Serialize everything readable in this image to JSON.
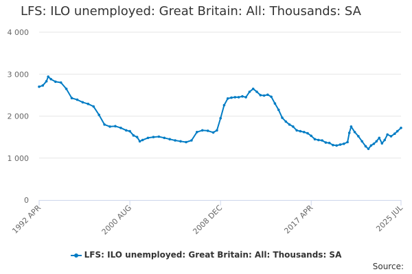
{
  "chart_data": {
    "type": "line",
    "title": "LFS: ILO unemployed: Great Britain: All: Thousands: SA",
    "xlabel": "",
    "ylabel": "",
    "x_tick_labels": [
      "1992 APR",
      "2000 AUG",
      "2008 DEC",
      "2017 APR",
      "2025 JUL"
    ],
    "y_ticks": [
      {
        "value": 0,
        "label": "0"
      },
      {
        "value": 1000,
        "label": "1 000"
      },
      {
        "value": 2000,
        "label": "2 000"
      },
      {
        "value": 3000,
        "label": "3 000"
      },
      {
        "value": 4000,
        "label": "4 000"
      }
    ],
    "ylim": [
      0,
      4000
    ],
    "xlim": [
      "1992 APR",
      "2025 JUL"
    ],
    "grid": "horizontal",
    "legend_position": "bottom",
    "series": [
      {
        "name": "LFS: ILO unemployed: Great Britain: All: Thousands: SA",
        "color": "#007cc4",
        "points": [
          [
            "1992 APR",
            2700
          ],
          [
            "1992 AUG",
            2730
          ],
          [
            "1992 DEC",
            2830
          ],
          [
            "1993 FEB",
            2940
          ],
          [
            "1993 MAY",
            2880
          ],
          [
            "1993 OCT",
            2820
          ],
          [
            "1994 APR",
            2800
          ],
          [
            "1994 OCT",
            2650
          ],
          [
            "1995 APR",
            2430
          ],
          [
            "1995 OCT",
            2390
          ],
          [
            "1996 APR",
            2330
          ],
          [
            "1996 OCT",
            2290
          ],
          [
            "1997 APR",
            2230
          ],
          [
            "1997 OCT",
            2030
          ],
          [
            "1998 APR",
            1800
          ],
          [
            "1998 OCT",
            1750
          ],
          [
            "1999 APR",
            1760
          ],
          [
            "1999 OCT",
            1720
          ],
          [
            "2000 APR",
            1660
          ],
          [
            "2000 AUG",
            1640
          ],
          [
            "2000 DEC",
            1540
          ],
          [
            "2001 APR",
            1500
          ],
          [
            "2001 JUL",
            1400
          ],
          [
            "2001 OCT",
            1430
          ],
          [
            "2002 APR",
            1480
          ],
          [
            "2002 OCT",
            1500
          ],
          [
            "2003 APR",
            1510
          ],
          [
            "2003 OCT",
            1480
          ],
          [
            "2004 APR",
            1450
          ],
          [
            "2004 OCT",
            1420
          ],
          [
            "2005 APR",
            1400
          ],
          [
            "2005 OCT",
            1380
          ],
          [
            "2006 APR",
            1420
          ],
          [
            "2006 OCT",
            1620
          ],
          [
            "2007 APR",
            1660
          ],
          [
            "2007 OCT",
            1650
          ],
          [
            "2008 APR",
            1610
          ],
          [
            "2008 AUG",
            1660
          ],
          [
            "2008 DEC",
            1950
          ],
          [
            "2009 APR",
            2260
          ],
          [
            "2009 AUG",
            2420
          ],
          [
            "2009 DEC",
            2440
          ],
          [
            "2010 APR",
            2450
          ],
          [
            "2010 AUG",
            2450
          ],
          [
            "2010 DEC",
            2470
          ],
          [
            "2011 APR",
            2450
          ],
          [
            "2011 AUG",
            2580
          ],
          [
            "2011 DEC",
            2650
          ],
          [
            "2012 APR",
            2580
          ],
          [
            "2012 AUG",
            2500
          ],
          [
            "2012 DEC",
            2490
          ],
          [
            "2013 APR",
            2510
          ],
          [
            "2013 AUG",
            2460
          ],
          [
            "2013 DEC",
            2300
          ],
          [
            "2014 APR",
            2150
          ],
          [
            "2014 AUG",
            1960
          ],
          [
            "2014 DEC",
            1870
          ],
          [
            "2015 APR",
            1800
          ],
          [
            "2015 AUG",
            1750
          ],
          [
            "2015 DEC",
            1660
          ],
          [
            "2016 APR",
            1640
          ],
          [
            "2016 AUG",
            1620
          ],
          [
            "2016 DEC",
            1590
          ],
          [
            "2017 APR",
            1530
          ],
          [
            "2017 AUG",
            1450
          ],
          [
            "2017 DEC",
            1430
          ],
          [
            "2018 APR",
            1420
          ],
          [
            "2018 AUG",
            1370
          ],
          [
            "2018 DEC",
            1360
          ],
          [
            "2019 APR",
            1310
          ],
          [
            "2019 AUG",
            1300
          ],
          [
            "2019 DEC",
            1320
          ],
          [
            "2020 APR",
            1340
          ],
          [
            "2020 AUG",
            1380
          ],
          [
            "2020 OCT",
            1600
          ],
          [
            "2020 DEC",
            1750
          ],
          [
            "2021 APR",
            1620
          ],
          [
            "2021 AUG",
            1520
          ],
          [
            "2021 DEC",
            1400
          ],
          [
            "2022 APR",
            1280
          ],
          [
            "2022 JUL",
            1220
          ],
          [
            "2022 OCT",
            1300
          ],
          [
            "2023 JAN",
            1340
          ],
          [
            "2023 APR",
            1400
          ],
          [
            "2023 JUL",
            1480
          ],
          [
            "2023 OCT",
            1350
          ],
          [
            "2024 JAN",
            1430
          ],
          [
            "2024 APR",
            1560
          ],
          [
            "2024 AUG",
            1520
          ],
          [
            "2024 DEC",
            1580
          ],
          [
            "2025 MAR",
            1640
          ],
          [
            "2025 JUL",
            1720
          ]
        ]
      }
    ]
  },
  "footer": {
    "source_label": "Source:"
  }
}
